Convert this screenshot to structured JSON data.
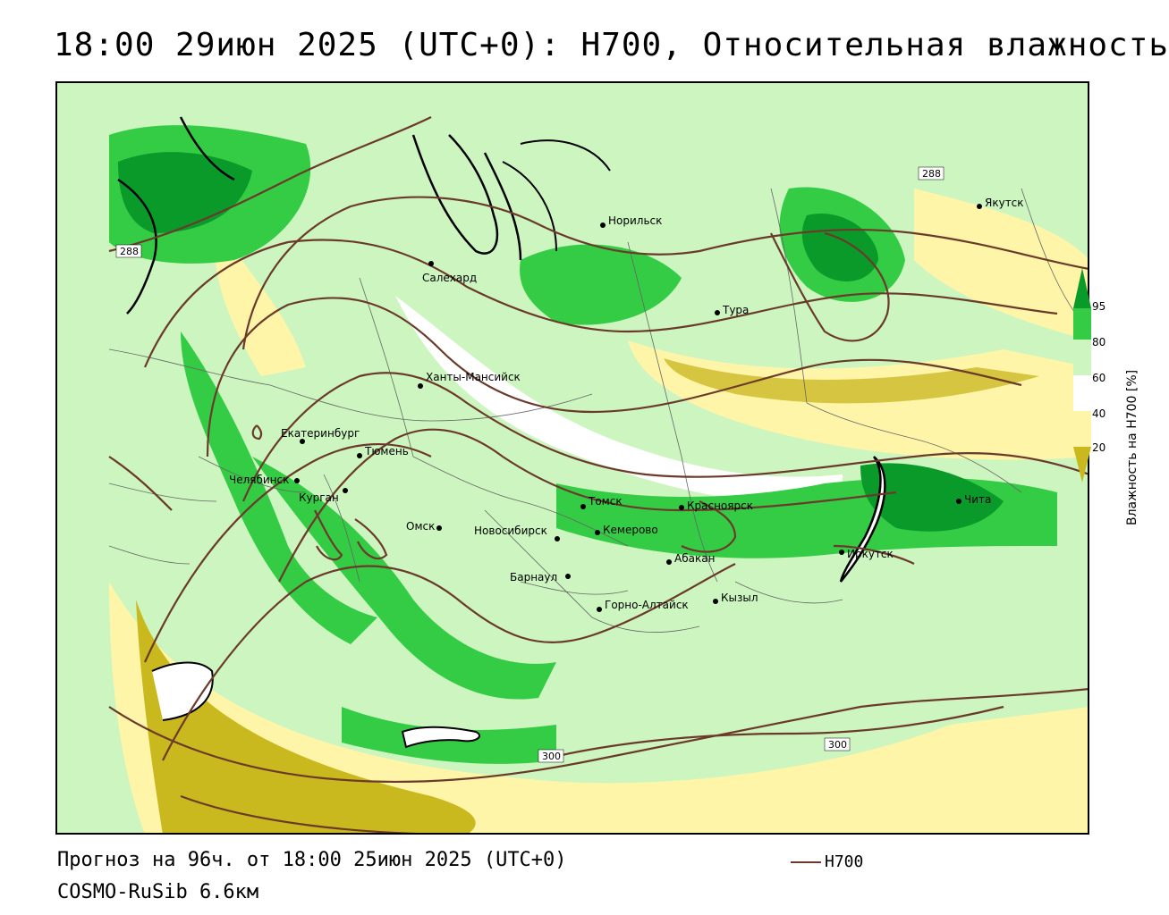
{
  "title": "18:00 29июн 2025 (UTC+0): H700, Относительная влажность",
  "forecast_text": "Прогноз на 96ч. от 18:00 25июн 2025 (UTC+0)",
  "model_text": "COSMO-RuSib 6.6км",
  "key": {
    "label": "H700",
    "color": "#6b3a2a"
  },
  "legend": {
    "title": "Влажность на H700 [%]",
    "ticks": [
      "95",
      "80",
      "60",
      "40",
      "20"
    ],
    "colors": {
      "very_dry": "#c9b81e",
      "dry": "#fff5a8",
      "moist": "#ccf5c0",
      "humid": "#33cc44",
      "saturated": "#0a9a2a"
    }
  },
  "contour_labels": [
    "288",
    "288",
    "300",
    "300"
  ],
  "cities": [
    {
      "name": "Салехард"
    },
    {
      "name": "Норильск"
    },
    {
      "name": "Якутск"
    },
    {
      "name": "Тура"
    },
    {
      "name": "Ханты-Мансийск"
    },
    {
      "name": "Екатеринбург"
    },
    {
      "name": "Тюмень"
    },
    {
      "name": "Челябинск"
    },
    {
      "name": "Курган"
    },
    {
      "name": "Омск"
    },
    {
      "name": "Новосибирск"
    },
    {
      "name": "Томск"
    },
    {
      "name": "Кемерово"
    },
    {
      "name": "Красноярск"
    },
    {
      "name": "Барнаул"
    },
    {
      "name": "Абакан"
    },
    {
      "name": "Горно-Алтайск"
    },
    {
      "name": "Кызыл"
    },
    {
      "name": "Иркутск"
    },
    {
      "name": "Чита"
    }
  ]
}
